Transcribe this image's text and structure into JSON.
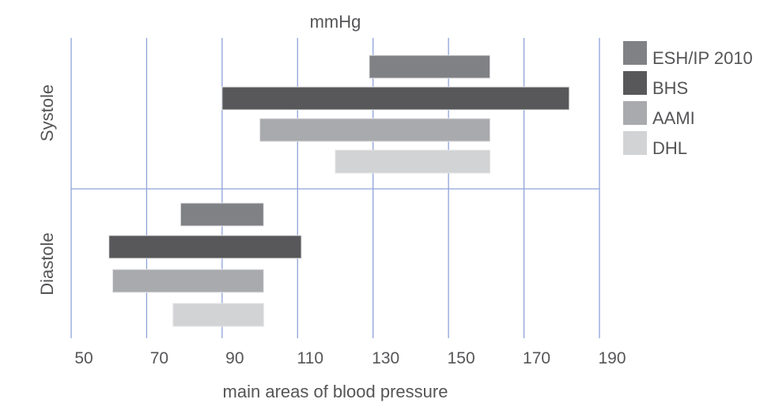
{
  "chart_data": {
    "type": "bar",
    "orientation": "horizontal-range",
    "title": "mmHg",
    "xlabel": "main areas of blood pressure",
    "xlim": [
      50,
      190
    ],
    "xticks": [
      50,
      70,
      90,
      110,
      130,
      150,
      170,
      190
    ],
    "grid": true,
    "legend_position": "right",
    "groups": [
      "Systole",
      "Diastole"
    ],
    "series": [
      {
        "name": "ESH/IP 2010",
        "color": "#808185",
        "ranges": [
          [
            129,
            161
          ],
          [
            79,
            101
          ]
        ]
      },
      {
        "name": "BHS",
        "color": "#58585a",
        "ranges": [
          [
            90,
            182
          ],
          [
            60,
            111
          ]
        ]
      },
      {
        "name": "AAMI",
        "color": "#a9aaad",
        "ranges": [
          [
            100,
            161
          ],
          [
            61,
            101
          ]
        ]
      },
      {
        "name": "DHL",
        "color": "#d2d3d5",
        "ranges": [
          [
            120,
            161
          ],
          [
            77,
            101
          ]
        ]
      }
    ],
    "grid_color": "#8ea3d8"
  }
}
